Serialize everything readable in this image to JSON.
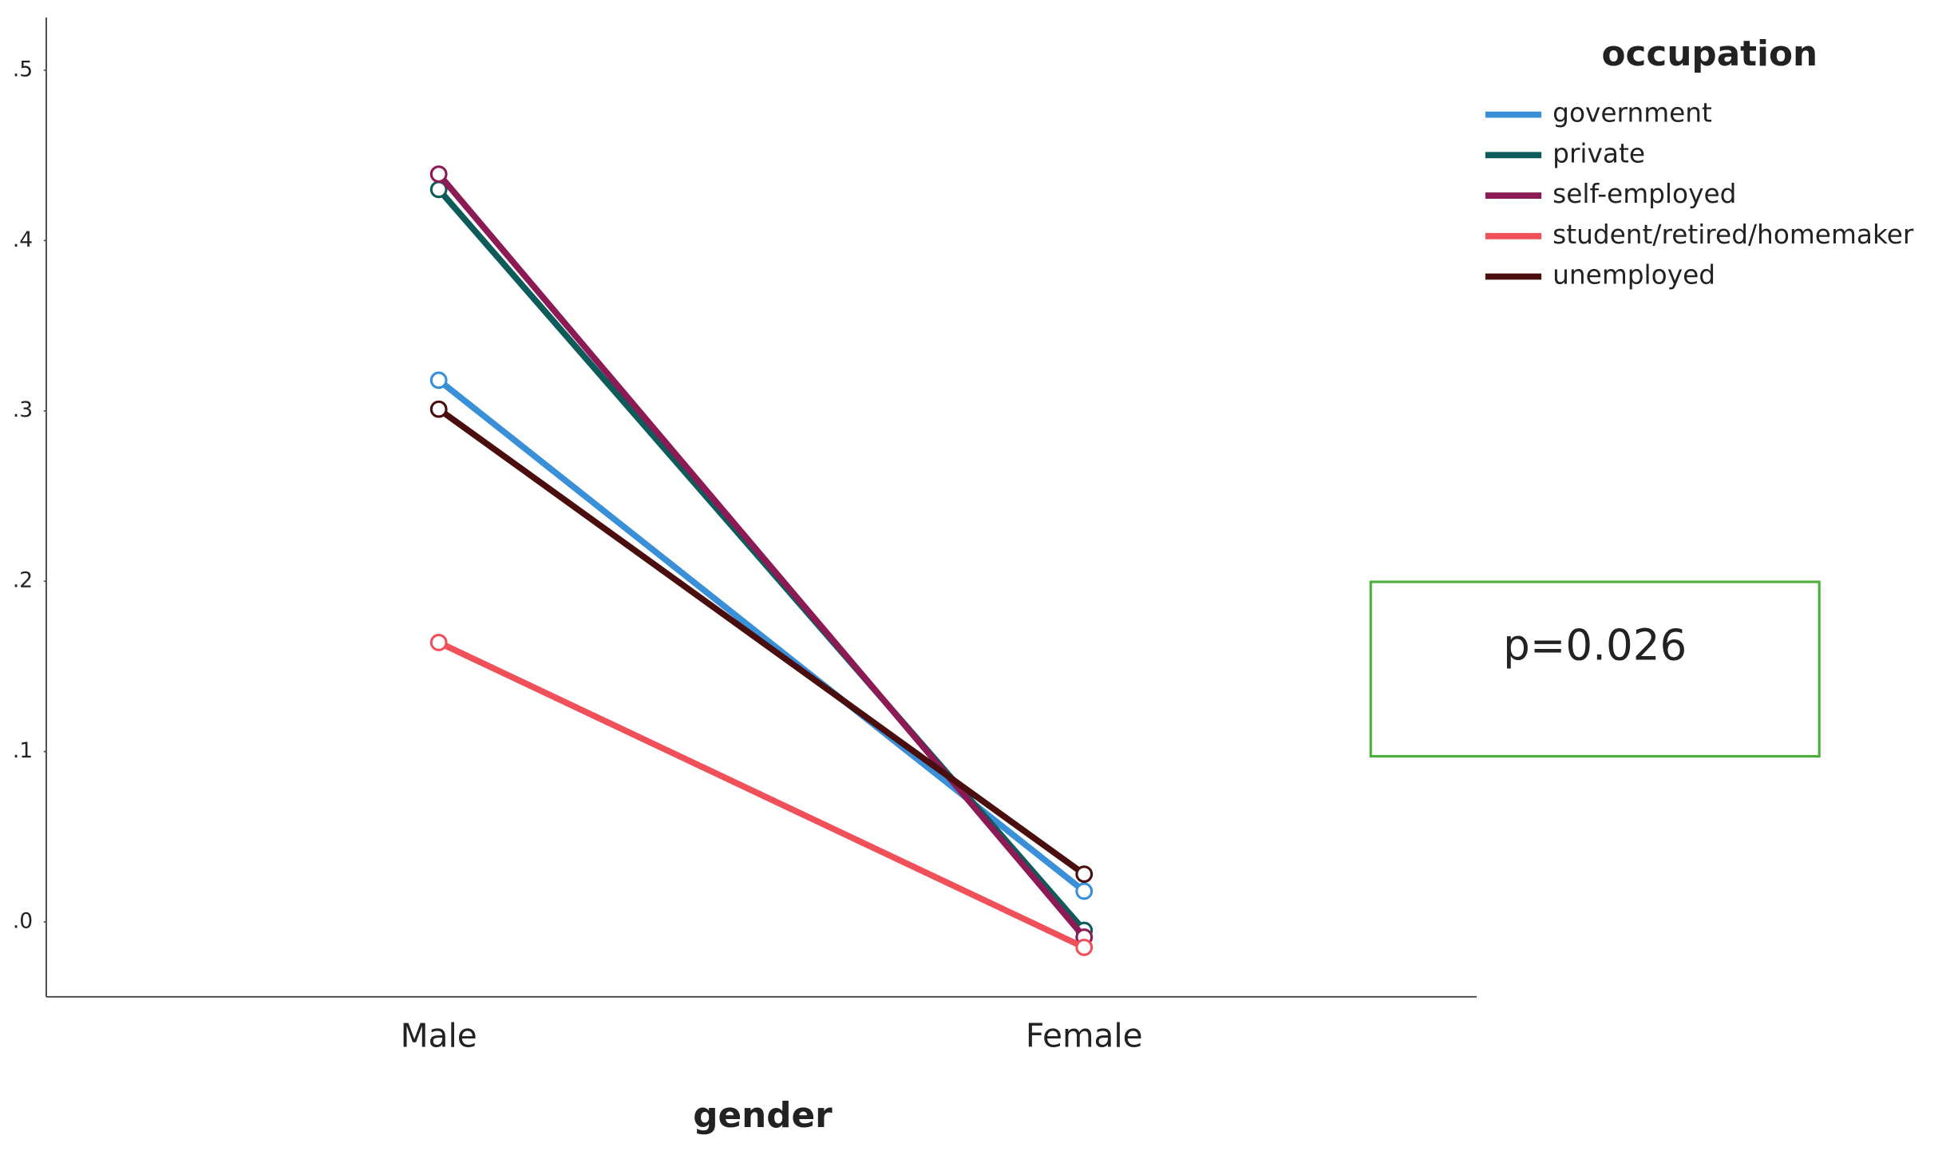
{
  "chart_data": {
    "type": "line",
    "x_label": "gender",
    "categories": [
      "Male",
      "Female"
    ],
    "series": [
      {
        "name": "government",
        "color": "#3a8fd9",
        "values": [
          0.318,
          0.018
        ]
      },
      {
        "name": "private",
        "color": "#0e5c5a",
        "values": [
          0.43,
          -0.005
        ]
      },
      {
        "name": "self-employed",
        "color": "#8b1a55",
        "values": [
          0.439,
          -0.009
        ]
      },
      {
        "name": "student/retired/homemaker",
        "color": "#f0505a",
        "values": [
          0.164,
          -0.015
        ]
      },
      {
        "name": "unemployed",
        "color": "#4a0e0e",
        "values": [
          0.301,
          0.028
        ]
      }
    ],
    "legend_title": "occupation",
    "legend_position": "top-right",
    "annotation": "p=0.026",
    "ylim": [
      -0.044,
      0.531
    ],
    "yticks": [
      {
        "value": 0,
        "label": ".0"
      },
      {
        "value": 0.1,
        "label": ".1"
      },
      {
        "value": 0.2,
        "label": ".2"
      },
      {
        "value": 0.3,
        "label": ".3"
      },
      {
        "value": 0.4,
        "label": ".4"
      },
      {
        "value": 0.5,
        "label": ".5"
      }
    ]
  }
}
